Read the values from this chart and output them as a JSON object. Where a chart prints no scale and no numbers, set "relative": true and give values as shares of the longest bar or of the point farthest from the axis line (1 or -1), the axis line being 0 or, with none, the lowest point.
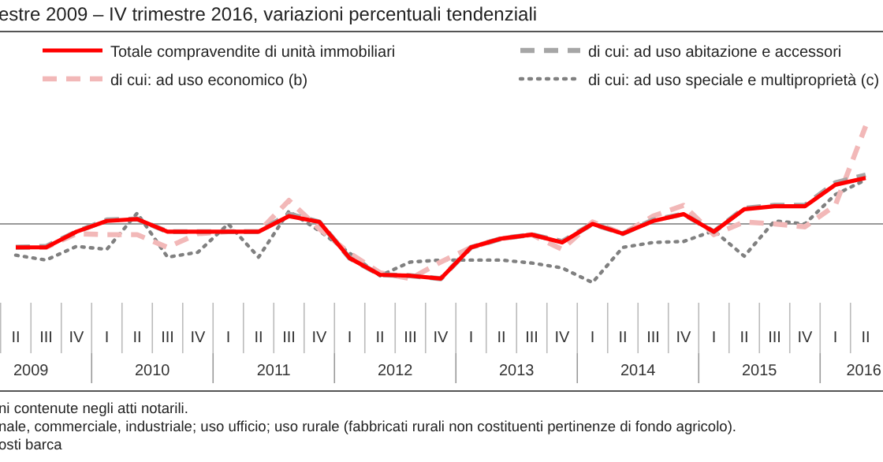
{
  "chart_data": {
    "type": "line",
    "title": "estre 2009 – IV trimestre 2016, variazioni percentuali tendenziali",
    "relative": true,
    "legend": "top",
    "categories": [
      "II",
      "III",
      "IV",
      "I",
      "II",
      "III",
      "IV",
      "I",
      "II",
      "III",
      "IV",
      "I",
      "II",
      "III",
      "IV",
      "I",
      "II",
      "III",
      "IV",
      "I",
      "II",
      "III",
      "IV",
      "I",
      "II",
      "III",
      "IV",
      "I",
      "II"
    ],
    "series": [
      {
        "name": "Totale compravendite di unità immobiliari",
        "color": "#ff0000",
        "line_style": "solid",
        "values": [
          -0.24,
          -0.24,
          -0.08,
          0.03,
          0.05,
          -0.08,
          -0.08,
          -0.08,
          -0.08,
          0.08,
          0.02,
          -0.35,
          -0.52,
          -0.53,
          -0.56,
          -0.24,
          -0.15,
          -0.11,
          -0.19,
          0,
          -0.1,
          0.03,
          0.1,
          -0.08,
          0.15,
          0.18,
          0.18,
          0.4,
          0.47
        ]
      },
      {
        "name": "di cui: ad uso abitazione e accessori",
        "color": "#a6a6a6",
        "line_style": "dashed",
        "values": [
          -0.24,
          -0.23,
          -0.08,
          0.04,
          0.05,
          -0.08,
          -0.08,
          -0.08,
          -0.08,
          0.1,
          0.02,
          -0.35,
          -0.52,
          -0.53,
          -0.56,
          -0.24,
          -0.15,
          -0.11,
          -0.18,
          0,
          -0.1,
          0.04,
          0.1,
          -0.08,
          0.16,
          0.19,
          0.19,
          0.42,
          0.5
        ]
      },
      {
        "name": "di cui: ad uso economico (b)",
        "color": "#f2b8b8",
        "line_style": "dashed",
        "values": [
          -0.24,
          -0.24,
          -0.1,
          -0.11,
          -0.11,
          -0.24,
          -0.1,
          -0.08,
          -0.08,
          0.24,
          -0.05,
          -0.3,
          -0.5,
          -0.56,
          -0.39,
          -0.24,
          -0.15,
          -0.11,
          -0.26,
          0.02,
          -0.1,
          0.08,
          0.19,
          -0.11,
          0.02,
          0,
          -0.03,
          0.19,
          1
        ]
      },
      {
        "name": "di cui: ad uso speciale e multiproprietà (c)",
        "color": "#808080",
        "line_style": "dotted",
        "values": [
          -0.32,
          -0.37,
          -0.23,
          -0.26,
          0.11,
          -0.34,
          -0.29,
          0,
          -0.34,
          0.13,
          -0.07,
          -0.3,
          -0.53,
          -0.39,
          -0.37,
          -0.37,
          -0.37,
          -0.4,
          -0.45,
          -0.6,
          -0.24,
          -0.19,
          -0.18,
          -0.07,
          -0.33,
          0.03,
          0,
          0.3,
          0.45
        ]
      }
    ],
    "annotations": [
      "2009",
      "2010",
      "2011",
      "2012",
      "2013",
      "2014",
      "2015",
      "2016",
      "ni contenute negli atti notarili.",
      "nale, commerciale, industriale; uso ufficio; uso rurale (fabbricati rurali non costituenti pertinenze di fondo agricolo).",
      "osti barca"
    ]
  }
}
